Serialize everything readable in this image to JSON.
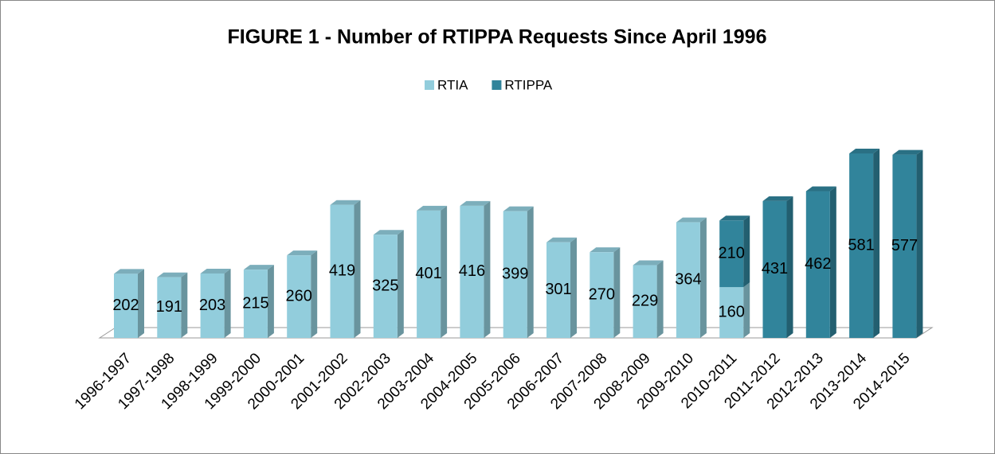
{
  "chart_data": {
    "type": "bar3d_stacked",
    "title": "FIGURE 1 - Number of RTIPPA Requests Since April 1996",
    "categories": [
      "1996-1997",
      "1997-1998",
      "1998-1999",
      "1999-2000",
      "2000-2001",
      "2001-2002",
      "2002-2003",
      "2003-2004",
      "2004-2005",
      "2005-2006",
      "2006-2007",
      "2007-2008",
      "2008-2009",
      "2009-2010",
      "2010-2011",
      "2011-2012",
      "2012-2013",
      "2013-2014",
      "2014-2015"
    ],
    "series": [
      {
        "name": "RTIA",
        "color": "#92cddc",
        "values": [
          202,
          191,
          203,
          215,
          260,
          419,
          325,
          401,
          416,
          399,
          301,
          270,
          229,
          364,
          160,
          null,
          null,
          null,
          null
        ]
      },
      {
        "name": "RTIPPA",
        "color": "#31849b",
        "values": [
          null,
          null,
          null,
          null,
          null,
          null,
          null,
          null,
          null,
          null,
          null,
          null,
          null,
          null,
          210,
          431,
          462,
          581,
          577
        ]
      }
    ],
    "legend": "top"
  }
}
